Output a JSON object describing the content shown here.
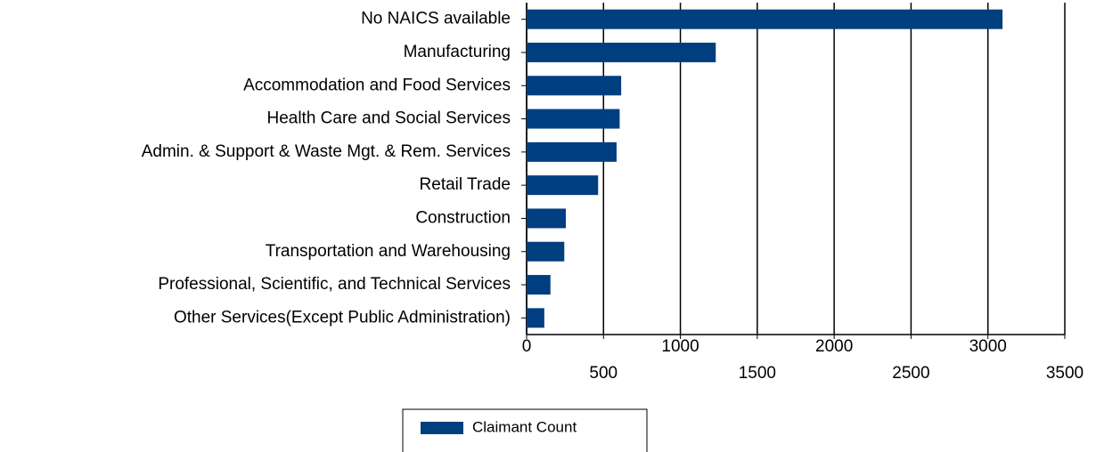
{
  "chart_data": {
    "type": "bar",
    "orientation": "horizontal",
    "categories": [
      "No NAICS available",
      "Manufacturing",
      "Accommodation and Food Services",
      "Health Care and Social Services",
      "Admin. & Support & Waste Mgt. & Rem. Services",
      "Retail Trade",
      "Construction",
      "Transportation and Warehousing",
      "Professional, Scientific, and Technical Services",
      "Other Services(Except Public Administration)"
    ],
    "series": [
      {
        "name": "Claimant Count",
        "color": "#003f7f",
        "values": [
          3095,
          1230,
          615,
          605,
          585,
          465,
          255,
          245,
          155,
          115
        ]
      }
    ],
    "xlim": [
      0,
      3500
    ],
    "xticks": [
      0,
      500,
      1000,
      1500,
      2000,
      2500,
      3000,
      3500
    ],
    "grid": true,
    "legend": "bottom"
  }
}
